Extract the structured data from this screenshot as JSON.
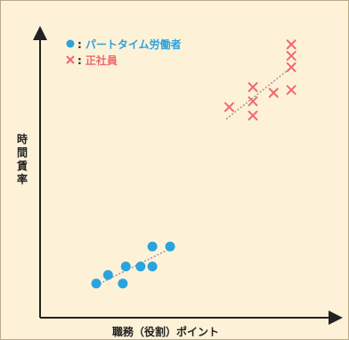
{
  "chart_data": {
    "type": "scatter",
    "title": "",
    "xlabel": "職務（役割）ポイント",
    "ylabel": "時間賃率",
    "xlim": [
      0,
      100
    ],
    "ylim": [
      0,
      100
    ],
    "grid": false,
    "legend_position": "top-left",
    "series": [
      {
        "name": "パートタイム労働者",
        "marker": "circle",
        "color": "#2aa3de",
        "trend_line": true,
        "points": [
          [
            19,
            12
          ],
          [
            23,
            15
          ],
          [
            28,
            12
          ],
          [
            29,
            18
          ],
          [
            34,
            18
          ],
          [
            38,
            25
          ],
          [
            38,
            18
          ],
          [
            44,
            25
          ]
        ]
      },
      {
        "name": "正社員",
        "marker": "x",
        "color": "#ef6a6e",
        "trend_line": true,
        "points": [
          [
            64,
            74
          ],
          [
            72,
            71
          ],
          [
            72,
            76
          ],
          [
            72,
            81
          ],
          [
            79,
            79
          ],
          [
            85,
            80
          ],
          [
            85,
            88
          ],
          [
            85,
            92
          ],
          [
            85,
            96
          ]
        ]
      }
    ]
  }
}
